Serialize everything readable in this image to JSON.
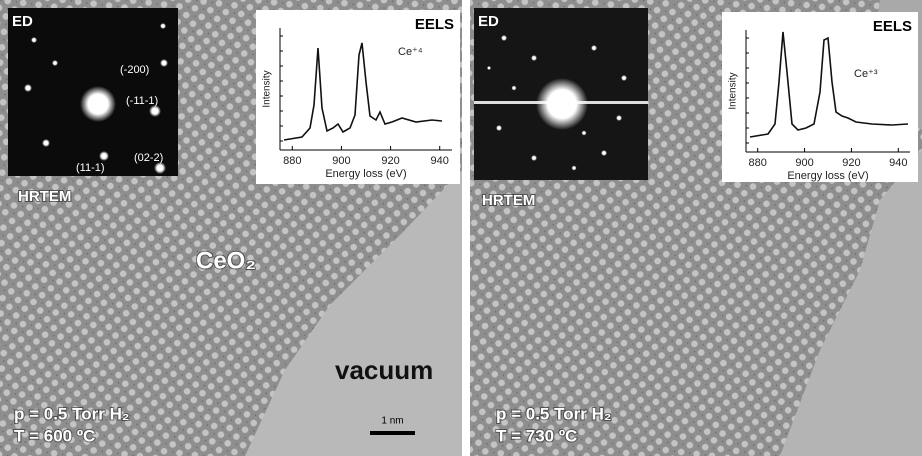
{
  "panels": [
    {
      "ed": {
        "label": "ED",
        "spots": [
          "(-200)",
          "(-11-1)",
          "(02-2)",
          "(11-1)"
        ]
      },
      "eels": {
        "label": "EELS",
        "species": "Ce⁺⁴",
        "xlabel": "Energy loss (eV)",
        "ylabel": "Intensity",
        "xlim": [
          875,
          945
        ],
        "xticks": [
          880,
          900,
          920,
          940
        ]
      },
      "hrtem_label": "HRTEM",
      "material": "CeO₂",
      "region": "vacuum",
      "scale_bar": "1 nm",
      "pressure": "p = 0.5 Torr H₂",
      "temperature": "T = 600 ºC"
    },
    {
      "ed": {
        "label": "ED"
      },
      "eels": {
        "label": "EELS",
        "species": "Ce⁺³",
        "xlabel": "Energy loss (eV)",
        "ylabel": "Intensity",
        "xlim": [
          875,
          945
        ],
        "xticks": [
          880,
          900,
          920,
          940
        ]
      },
      "hrtem_label": "HRTEM",
      "pressure": "p = 0.5 Torr H₂",
      "temperature": "T = 730 ºC"
    }
  ]
}
